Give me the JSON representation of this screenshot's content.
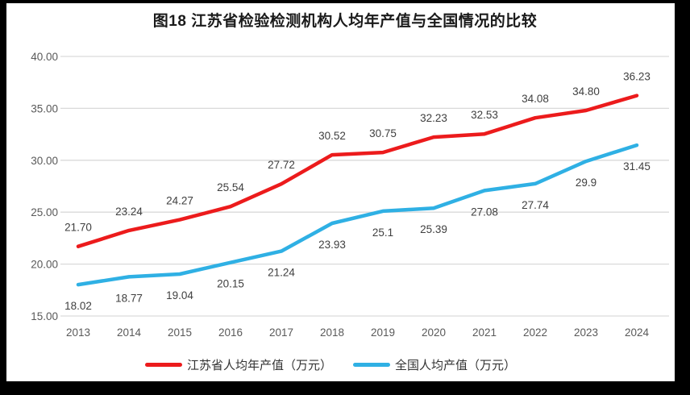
{
  "chart_data": {
    "type": "line",
    "title": "图18  江苏省检验检测机构人均年产值与全国情况的比较",
    "categories": [
      "2013",
      "2014",
      "2015",
      "2016",
      "2017",
      "2018",
      "2019",
      "2020",
      "2021",
      "2022",
      "2023",
      "2024"
    ],
    "series": [
      {
        "name": "江苏省人均年产值（万元）",
        "color": "#EC1B1C",
        "values": [
          21.7,
          23.24,
          24.27,
          25.54,
          27.72,
          30.52,
          30.75,
          32.23,
          32.53,
          34.08,
          34.8,
          36.23
        ],
        "labels": [
          "21.70",
          "23.24",
          "24.27",
          "25.54",
          "27.72",
          "30.52",
          "30.75",
          "32.23",
          "32.53",
          "34.08",
          "34.80",
          "36.23"
        ],
        "label_position": "above"
      },
      {
        "name": "全国人均产值（万元）",
        "color": "#2FB0E4",
        "values": [
          18.02,
          18.77,
          19.04,
          20.15,
          21.24,
          23.93,
          25.1,
          25.39,
          27.08,
          27.74,
          29.9,
          31.45
        ],
        "labels": [
          "18.02",
          "18.77",
          "19.04",
          "20.15",
          "21.24",
          "23.93",
          "25.1",
          "25.39",
          "27.08",
          "27.74",
          "29.9",
          "31.45"
        ],
        "label_position": "below"
      }
    ],
    "ylim": [
      15,
      40
    ],
    "ytick_step": 5,
    "ytick_labels": [
      "15.00",
      "20.00",
      "25.00",
      "30.00",
      "35.00",
      "40.00"
    ],
    "grid": true,
    "legend_position": "bottom",
    "colors": {
      "gridline": "#D9D9D9",
      "tick_label": "#595959",
      "data_label": "#3F3F3F",
      "title": "#1A1A1A",
      "frame": "#000000"
    }
  }
}
